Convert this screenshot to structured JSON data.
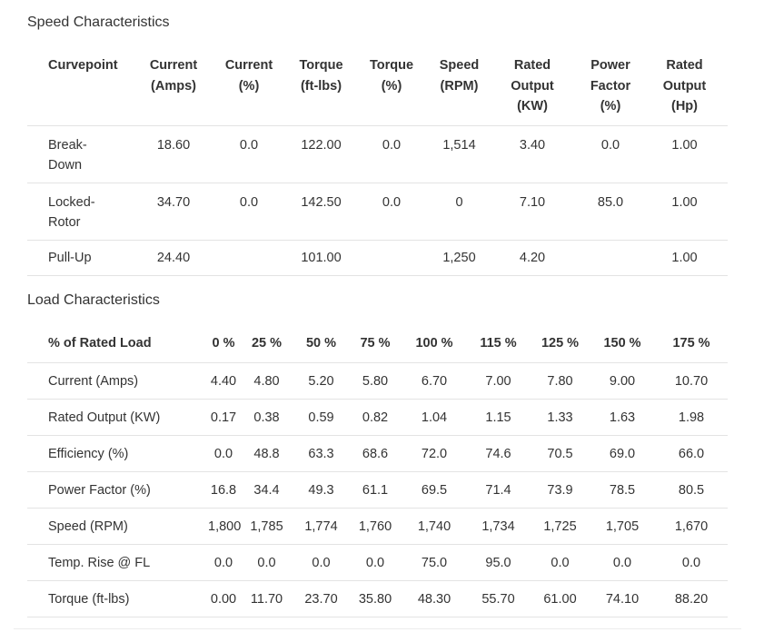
{
  "speed": {
    "title": "Speed Characteristics",
    "headers": [
      [
        "Curvepoint"
      ],
      [
        "Current",
        "(Amps)"
      ],
      [
        "Current",
        "(%)"
      ],
      [
        "Torque",
        "(ft-lbs)"
      ],
      [
        "Torque",
        "(%)"
      ],
      [
        "Speed",
        "(RPM)"
      ],
      [
        "Rated",
        "Output",
        "(KW)"
      ],
      [
        "Power",
        "Factor",
        "(%)"
      ],
      [
        "Rated",
        "Output",
        "(Hp)"
      ]
    ],
    "rows": [
      {
        "label": [
          "Break-",
          "Down"
        ],
        "values": [
          "18.60",
          "0.0",
          "122.00",
          "0.0",
          "1,514",
          "3.40",
          "0.0",
          "1.00"
        ]
      },
      {
        "label": [
          "Locked-",
          "Rotor"
        ],
        "values": [
          "34.70",
          "0.0",
          "142.50",
          "0.0",
          "0",
          "7.10",
          "85.0",
          "1.00"
        ]
      },
      {
        "label": [
          "Pull-Up"
        ],
        "values": [
          "24.40",
          "",
          "101.00",
          "",
          "1,250",
          "4.20",
          "",
          "1.00"
        ]
      }
    ]
  },
  "load": {
    "title": "Load Characteristics",
    "headers": [
      "% of Rated Load",
      "0 %",
      "25 %",
      "50 %",
      "75 %",
      "100 %",
      "115 %",
      "125 %",
      "150 %",
      "175 %"
    ],
    "rows": [
      {
        "label": "Current (Amps)",
        "values": [
          "4.40",
          "4.80",
          "5.20",
          "5.80",
          "6.70",
          "7.00",
          "7.80",
          "9.00",
          "10.70"
        ]
      },
      {
        "label": "Rated Output (KW)",
        "values": [
          "0.17",
          "0.38",
          "0.59",
          "0.82",
          "1.04",
          "1.15",
          "1.33",
          "1.63",
          "1.98"
        ]
      },
      {
        "label": "Efficiency (%)",
        "values": [
          "0.0",
          "48.8",
          "63.3",
          "68.6",
          "72.0",
          "74.6",
          "70.5",
          "69.0",
          "66.0"
        ]
      },
      {
        "label": "Power Factor (%)",
        "values": [
          "16.8",
          "34.4",
          "49.3",
          "61.1",
          "69.5",
          "71.4",
          "73.9",
          "78.5",
          "80.5"
        ]
      },
      {
        "label": "Speed (RPM)",
        "values": [
          "1,800",
          "1,785",
          "1,774",
          "1,760",
          "1,740",
          "1,734",
          "1,725",
          "1,705",
          "1,670"
        ]
      },
      {
        "label": "Temp. Rise @ FL",
        "values": [
          "0.0",
          "0.0",
          "0.0",
          "0.0",
          "75.0",
          "95.0",
          "0.0",
          "0.0",
          "0.0"
        ]
      },
      {
        "label": "Torque (ft-lbs)",
        "values": [
          "0.00",
          "11.70",
          "23.70",
          "35.80",
          "48.30",
          "55.70",
          "61.00",
          "74.10",
          "88.20"
        ]
      }
    ]
  }
}
